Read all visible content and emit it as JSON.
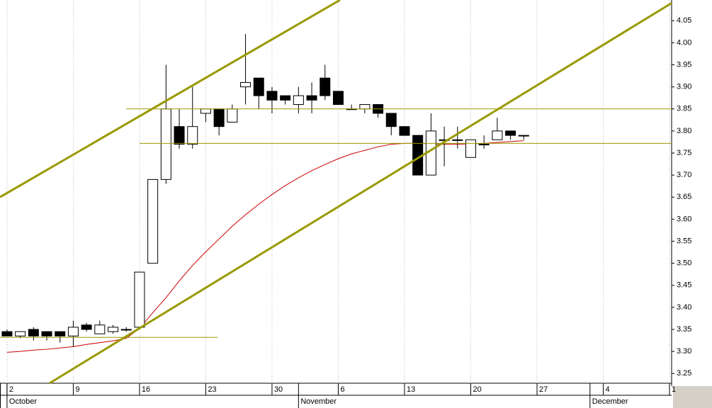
{
  "chart_data": {
    "type": "candlestick",
    "x": [
      0,
      1,
      2,
      3,
      4,
      5,
      6,
      7,
      8,
      9,
      10,
      11,
      12,
      13,
      14,
      15,
      16,
      17,
      18,
      19,
      20,
      21,
      22,
      23,
      24,
      25,
      26,
      27,
      28,
      29,
      30,
      31,
      32,
      33,
      34,
      35,
      36,
      37,
      38,
      39
    ],
    "open": [
      3.345,
      3.335,
      3.35,
      3.345,
      3.345,
      3.335,
      3.36,
      3.34,
      3.345,
      3.35,
      3.355,
      3.5,
      3.69,
      3.81,
      3.77,
      3.84,
      3.85,
      3.82,
      3.9,
      3.92,
      3.89,
      3.88,
      3.86,
      3.88,
      3.92,
      3.89,
      3.85,
      3.85,
      3.86,
      3.84,
      3.81,
      3.79,
      3.7,
      3.78,
      3.78,
      3.74,
      3.77,
      3.78,
      3.8,
      3.79
    ],
    "high": [
      3.35,
      3.345,
      3.355,
      3.345,
      3.345,
      3.37,
      3.365,
      3.37,
      3.36,
      3.355,
      3.48,
      3.69,
      3.95,
      3.85,
      3.9,
      3.85,
      3.85,
      3.86,
      4.02,
      3.92,
      3.9,
      3.88,
      3.9,
      3.91,
      3.95,
      3.89,
      3.86,
      3.86,
      3.86,
      3.84,
      3.81,
      3.79,
      3.84,
      3.81,
      3.81,
      3.78,
      3.79,
      3.83,
      3.8,
      3.79
    ],
    "low": [
      3.335,
      3.33,
      3.325,
      3.325,
      3.32,
      3.31,
      3.345,
      3.34,
      3.34,
      3.345,
      3.35,
      3.5,
      3.68,
      3.76,
      3.76,
      3.82,
      3.79,
      3.82,
      3.86,
      3.85,
      3.84,
      3.86,
      3.84,
      3.84,
      3.87,
      3.86,
      3.85,
      3.84,
      3.83,
      3.79,
      3.79,
      3.7,
      3.7,
      3.72,
      3.76,
      3.74,
      3.76,
      3.78,
      3.78,
      3.78
    ],
    "close": [
      3.335,
      3.345,
      3.335,
      3.335,
      3.335,
      3.355,
      3.35,
      3.36,
      3.355,
      3.35,
      3.48,
      3.69,
      3.85,
      3.77,
      3.81,
      3.85,
      3.81,
      3.85,
      3.91,
      3.88,
      3.87,
      3.87,
      3.88,
      3.87,
      3.88,
      3.86,
      3.85,
      3.86,
      3.84,
      3.81,
      3.79,
      3.7,
      3.8,
      3.78,
      3.78,
      3.78,
      3.77,
      3.8,
      3.79,
      3.79
    ],
    "up_color": "#ffffff",
    "down_color": "#000000",
    "moving_average": {
      "color": "#cc0000",
      "values": [
        3.298,
        3.3,
        3.303,
        3.305,
        3.308,
        3.311,
        3.316,
        3.32,
        3.324,
        3.33,
        3.352,
        3.388,
        3.422,
        3.46,
        3.495,
        3.526,
        3.555,
        3.584,
        3.61,
        3.634,
        3.656,
        3.676,
        3.694,
        3.71,
        3.724,
        3.737,
        3.748,
        3.756,
        3.764,
        3.77,
        3.772,
        3.772,
        3.771,
        3.77,
        3.77,
        3.771,
        3.772,
        3.774,
        3.776,
        3.778
      ]
    },
    "trend_color": "#999900",
    "trend_lines": [
      {
        "x": [
          -0.53,
          25.13
        ],
        "y": [
          3.65,
          4.097
        ],
        "width": 3
      },
      {
        "x": [
          3.21,
          50.16
        ],
        "y": [
          3.228,
          4.09
        ],
        "width": 3
      },
      {
        "x": [
          9.0,
          50.16
        ],
        "y": [
          3.85,
          3.85
        ],
        "width": 1
      },
      {
        "x": [
          10.0,
          50.16
        ],
        "y": [
          3.772,
          3.772
        ],
        "width": 1
      },
      {
        "x": [
          -0.53,
          15.9
        ],
        "y": [
          3.332,
          3.332
        ],
        "width": 1
      }
    ],
    "xlim": [
      -0.53,
      50.16
    ],
    "ylim": [
      3.228,
      4.097
    ],
    "xticks": [
      {
        "value": 0,
        "label": "2"
      },
      {
        "value": 5,
        "label": "9"
      },
      {
        "value": 10,
        "label": "16"
      },
      {
        "value": 15,
        "label": "23"
      },
      {
        "value": 20,
        "label": "30"
      },
      {
        "value": 25,
        "label": "6"
      },
      {
        "value": 30,
        "label": "13"
      },
      {
        "value": 35,
        "label": "20"
      },
      {
        "value": 40,
        "label": "27"
      },
      {
        "value": 45,
        "label": "4"
      },
      {
        "value": 50,
        "label": "1"
      }
    ],
    "month_ticks": [
      {
        "value": 0,
        "label": "October"
      },
      {
        "value": 22,
        "label": "November"
      },
      {
        "value": 44,
        "label": "December"
      }
    ],
    "yticks": [
      {
        "value": 3.25,
        "label": "3.25"
      },
      {
        "value": 3.3,
        "label": "3.30"
      },
      {
        "value": 3.35,
        "label": "3.35"
      },
      {
        "value": 3.4,
        "label": "3.40"
      },
      {
        "value": 3.45,
        "label": "3.45"
      },
      {
        "value": 3.5,
        "label": "3.50"
      },
      {
        "value": 3.55,
        "label": "3.55"
      },
      {
        "value": 3.6,
        "label": "3.60"
      },
      {
        "value": 3.65,
        "label": "3.65"
      },
      {
        "value": 3.7,
        "label": "3.70"
      },
      {
        "value": 3.75,
        "label": "3.75"
      },
      {
        "value": 3.8,
        "label": "3.80"
      },
      {
        "value": 3.85,
        "label": "3.85"
      },
      {
        "value": 3.9,
        "label": "3.90"
      },
      {
        "value": 3.95,
        "label": "3.95"
      },
      {
        "value": 4.0,
        "label": "4.00"
      },
      {
        "value": 4.05,
        "label": "4.05"
      }
    ],
    "grid": true
  }
}
